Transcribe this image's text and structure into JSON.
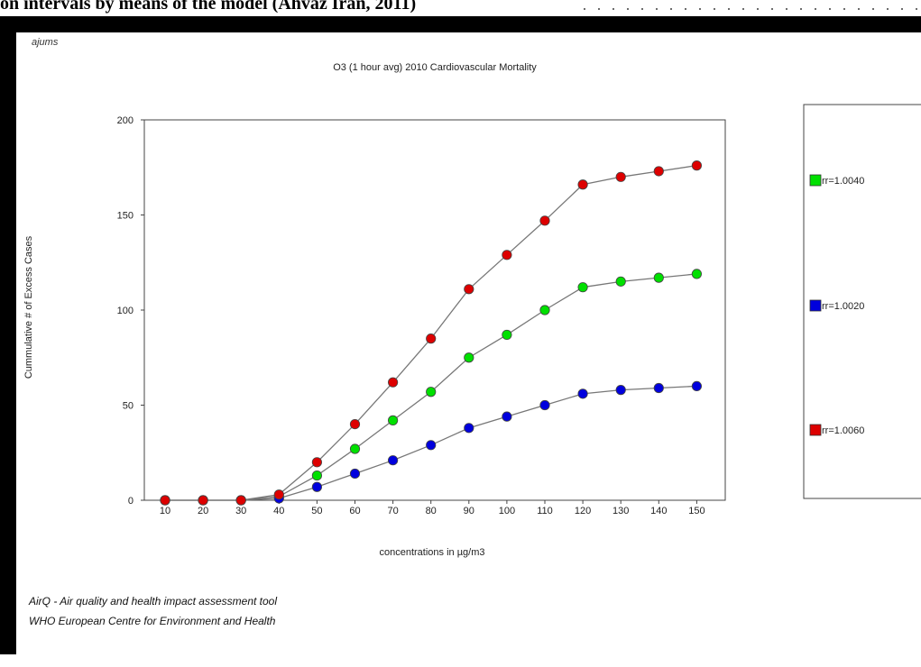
{
  "caption": {
    "text": "on intervals by means of the model (Ahvaz Iran, 2011)"
  },
  "app": {
    "brand": "ajums",
    "footer_line1": "AirQ - Air quality and health impact assessment tool",
    "footer_line2": "WHO European Centre for Environment and Health"
  },
  "chart_data": {
    "type": "line",
    "title": "O3 (1 hour avg)  2010  Cardiovascular Mortality",
    "xlabel": "concentrations in µg/m3",
    "ylabel": "Cummulative # of Excess Cases",
    "x": [
      10,
      20,
      30,
      40,
      50,
      60,
      70,
      80,
      90,
      100,
      110,
      120,
      130,
      140,
      150
    ],
    "ylim": [
      0,
      200
    ],
    "yticks": [
      0,
      50,
      100,
      150,
      200
    ],
    "grid": false,
    "legend_position": "right",
    "series": [
      {
        "name": "rr=1.0040",
        "color": "#00e000",
        "values": [
          0,
          0,
          0,
          2,
          13,
          27,
          42,
          57,
          75,
          87,
          100,
          112,
          115,
          117,
          119
        ]
      },
      {
        "name": "rr=1.0020",
        "color": "#0000dd",
        "values": [
          0,
          0,
          0,
          1,
          7,
          14,
          21,
          29,
          38,
          44,
          50,
          56,
          58,
          59,
          60
        ]
      },
      {
        "name": "rr=1.0060",
        "color": "#dd0000",
        "values": [
          0,
          0,
          0,
          3,
          20,
          40,
          62,
          85,
          111,
          129,
          147,
          166,
          170,
          173,
          176
        ]
      }
    ]
  }
}
